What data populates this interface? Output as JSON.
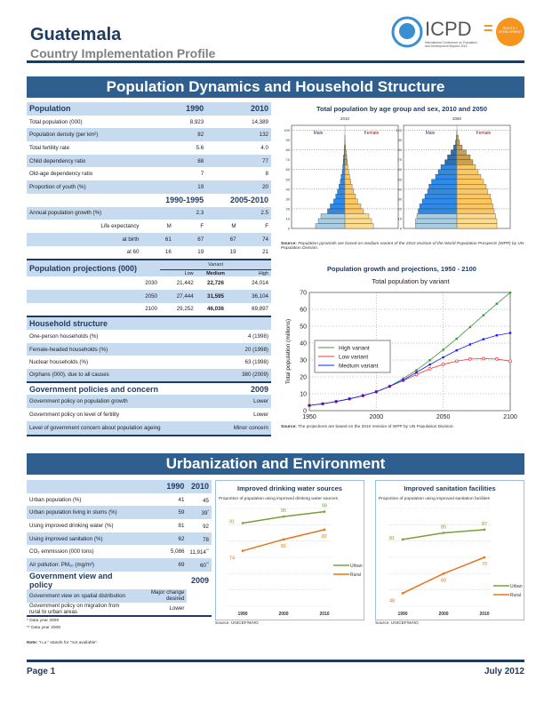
{
  "header": {
    "country": "Guatemala",
    "subtitle": "Country Implementation Profile",
    "logo_text": "ICPD",
    "logo_eq": "=",
    "logo_caption": "International Conference on Population and Development Beyond 2014",
    "logo_badge": "RIGHTS + DEVELOPMENT"
  },
  "section1": {
    "title": "Population Dynamics and Household Structure"
  },
  "population": {
    "header": [
      "Population",
      "1990",
      "2010"
    ],
    "rows": [
      [
        "Total population (000)",
        "8,923",
        "14,389"
      ],
      [
        "Population density (per km²)",
        "82",
        "132"
      ],
      [
        "Total fertility rate",
        "5.6",
        "4.0"
      ],
      [
        "Child dependency ratio",
        "88",
        "77"
      ],
      [
        "Old-age dependency ratio",
        "7",
        "8"
      ],
      [
        "Proportion of youth (%)",
        "19",
        "20"
      ]
    ],
    "period_header": [
      "1990-1995",
      "2005-2010"
    ],
    "growth": [
      "Annual population growth (%)",
      "2.3",
      "2.5"
    ],
    "life_header": [
      "Life expectancy",
      "M",
      "F",
      "M",
      "F"
    ],
    "life_rows": [
      [
        "at birth",
        "61",
        "67",
        "67",
        "74"
      ],
      [
        "at 60",
        "16",
        "19",
        "19",
        "21"
      ]
    ]
  },
  "projections": {
    "title": "Population projections (000)",
    "variant": "Variant",
    "cols": [
      "Low",
      "Medium",
      "High"
    ],
    "rows": [
      [
        "2030",
        "21,442",
        "22,726",
        "24,014"
      ],
      [
        "2050",
        "27,444",
        "31,595",
        "36,104"
      ],
      [
        "2100",
        "29,252",
        "46,036",
        "69,897"
      ]
    ]
  },
  "household": {
    "title": "Household structure",
    "rows": [
      [
        "One-person households (%)",
        "4 (1998)"
      ],
      [
        "Female-headed households (%)",
        "20 (1998)"
      ],
      [
        "Nuclear households (%)",
        "63 (1998)"
      ],
      [
        "Orphans (000), due to all causes",
        "380 (2009)"
      ]
    ]
  },
  "policies": {
    "title": "Government policies and concern",
    "year": "2009",
    "rows": [
      [
        "Government policy on population growth",
        "Lower"
      ],
      [
        "Government policy on level of fertility",
        "Lower"
      ],
      [
        "Level of government concern about population ageing",
        "Minor concern"
      ]
    ]
  },
  "section2": {
    "title": "Urbanization and Environment"
  },
  "urban": {
    "header": [
      "",
      "1990",
      "2010"
    ],
    "rows": [
      [
        "Urban population (%)",
        "41",
        "45",
        ""
      ],
      [
        "Urban population living in slums (%)",
        "59",
        "39",
        "*"
      ],
      [
        "Using improved drinking water (%)",
        "81",
        "92",
        ""
      ],
      [
        "Using improved sanitation (%)",
        "62",
        "78",
        ""
      ],
      [
        "CO₂ emmission (000 tons)",
        "5,086",
        "11,914",
        "**"
      ],
      [
        "Air pollution: PM₁₀ (mg/m³)",
        "69",
        "60",
        "**"
      ]
    ],
    "view_title": "Government view and policy",
    "view_year": "2009",
    "view_rows": [
      [
        "Government view on spatial distribution",
        "Major change desired"
      ],
      [
        "Government policy on migration from rural to urban areas",
        "Lower"
      ]
    ],
    "notes": [
      "* Data year 2009",
      "** Data year 2008"
    ],
    "note_label": "Note:",
    "note_text": "\"n.a.\" stands for \"not available\"."
  },
  "chart_data": [
    {
      "type": "bar",
      "subtype": "population-pyramid",
      "title": "Total population by age group and sex, 2010 and 2050",
      "age_groups": [
        "0-4",
        "5-9",
        "10-14",
        "15-19",
        "20-24",
        "25-29",
        "30-34",
        "35-39",
        "40-44",
        "45-49",
        "50-54",
        "55-59",
        "60-64",
        "65-69",
        "70-74",
        "75-79",
        "80-84",
        "85-89",
        "90-94",
        "95-99",
        "100+"
      ],
      "yticks": [
        "0",
        "10",
        "20",
        "30",
        "40",
        "50",
        "60",
        "70",
        "80",
        "90",
        "100"
      ],
      "legend": [
        "Male",
        "Female"
      ],
      "colors": {
        "child_m": "#a9cde3",
        "adult_m": "#2e8ae6",
        "old_m": "#2f6fae",
        "child_f": "#fddc90",
        "adult_f": "#fcc760",
        "old_f": "#c8a04e"
      },
      "panels": [
        {
          "year": "2010",
          "xlim": [
            -2,
            2
          ],
          "male": [
            1.1,
            1.0,
            0.9,
            0.65,
            0.55,
            0.42,
            0.34,
            0.28,
            0.22,
            0.17,
            0.14,
            0.1,
            0.08,
            0.06,
            0.05,
            0.03,
            0.02,
            0.01,
            0.005,
            0,
            0
          ],
          "female": [
            1.07,
            1.0,
            0.9,
            0.7,
            0.6,
            0.48,
            0.4,
            0.33,
            0.27,
            0.22,
            0.18,
            0.14,
            0.11,
            0.09,
            0.07,
            0.05,
            0.03,
            0.015,
            0.005,
            0,
            0
          ]
        },
        {
          "year": "2050",
          "xlim": [
            -2,
            2
          ],
          "male": [
            1.55,
            1.55,
            1.5,
            1.45,
            1.4,
            1.3,
            1.2,
            1.1,
            1.05,
            0.95,
            0.8,
            0.7,
            0.6,
            0.45,
            0.35,
            0.22,
            0.12,
            0.05,
            0.02,
            0.005,
            0
          ],
          "female": [
            1.5,
            1.5,
            1.45,
            1.4,
            1.35,
            1.3,
            1.25,
            1.15,
            1.1,
            1.0,
            0.9,
            0.8,
            0.7,
            0.6,
            0.5,
            0.35,
            0.2,
            0.1,
            0.05,
            0.01,
            0
          ]
        }
      ],
      "source_label": "Source:",
      "source": "Population pyramids are based on medium variant of the 2010 revision of the World Population Prospects (WPP) by UN Population Division."
    },
    {
      "type": "line",
      "title": "Population growth and projections, 1950 - 2100",
      "subtitle": "Total population by variant",
      "ylabel": "Total population (millions)",
      "xlim": [
        1950,
        2100
      ],
      "ylim": [
        0,
        70
      ],
      "xticks": [
        1950,
        2000,
        2050,
        2100
      ],
      "yticks": [
        0,
        10,
        20,
        30,
        40,
        50,
        60,
        70
      ],
      "grid": true,
      "legend_position": "left",
      "x": [
        1950,
        1960,
        1970,
        1980,
        1990,
        2000,
        2010,
        2020,
        2030,
        2040,
        2050,
        2060,
        2070,
        2080,
        2090,
        2100
      ],
      "series": [
        {
          "name": "High variant",
          "color": "#3a9a3a",
          "values": [
            3.1,
            4.1,
            5.4,
            7.0,
            8.9,
            11.2,
            14.4,
            19.0,
            24.0,
            29.9,
            36.1,
            42.6,
            49.5,
            56.5,
            63.3,
            69.9
          ]
        },
        {
          "name": "Low variant",
          "color": "#ff3030",
          "values": [
            3.1,
            4.1,
            5.4,
            7.0,
            8.9,
            11.2,
            14.4,
            17.8,
            21.4,
            24.8,
            27.4,
            29.3,
            30.6,
            30.8,
            30.6,
            29.3
          ]
        },
        {
          "name": "Medium variant",
          "color": "#1a1aff",
          "values": [
            3.1,
            4.1,
            5.4,
            7.0,
            8.9,
            11.2,
            14.4,
            18.1,
            22.7,
            27.3,
            31.6,
            35.7,
            39.2,
            42.3,
            44.6,
            46.0
          ]
        }
      ],
      "source_label": "Source:",
      "source": "The projections are based on the 2010 revision of WPP by UN Population Division."
    },
    {
      "type": "line",
      "title": "Improved drinking water sources",
      "subtitle": "Proportion of population using improved drinking water sources",
      "categories": [
        "1990",
        "2000",
        "2010"
      ],
      "ylim": [
        0,
        100
      ],
      "series": [
        {
          "name": "Urban",
          "color": "#77a03a",
          "values": [
            91,
            95,
            98
          ]
        },
        {
          "name": "Rural",
          "color": "#e8731a",
          "values": [
            74,
            81,
            87
          ]
        }
      ],
      "source": "Source: UNICEF/WHO"
    },
    {
      "type": "line",
      "title": "Improved sanitation facilities",
      "subtitle": "Proportion of population using improved sanitation facilities",
      "categories": [
        "1990",
        "2000",
        "2010"
      ],
      "ylim": [
        0,
        100
      ],
      "series": [
        {
          "name": "Urban",
          "color": "#77a03a",
          "values": [
            81,
            85,
            87
          ]
        },
        {
          "name": "Rural",
          "color": "#e8731a",
          "values": [
            48,
            60,
            70
          ]
        }
      ],
      "source": "Source: UNICEF/WHO"
    }
  ],
  "footer": {
    "page": "Page 1",
    "date": "July 2012"
  }
}
